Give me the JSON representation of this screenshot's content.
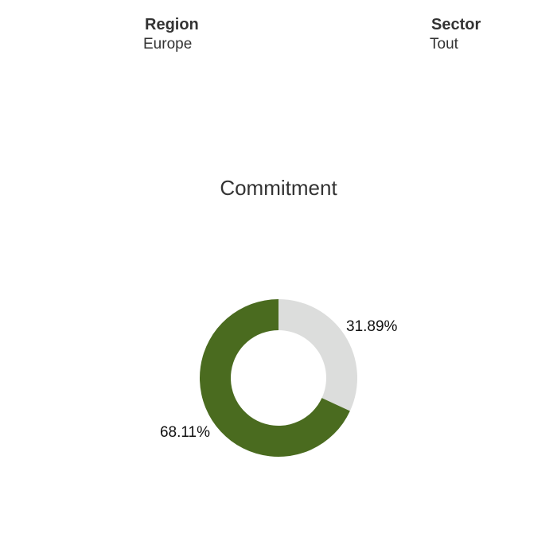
{
  "filters": {
    "region": {
      "label": "Region",
      "value": "Europe"
    },
    "sector": {
      "label": "Sector",
      "value": "Tout"
    }
  },
  "chart_data": {
    "type": "pie",
    "title": "Commitment",
    "donut": true,
    "slices": [
      {
        "value": 31.89,
        "label": "31.89%",
        "color": "#dcdddc"
      },
      {
        "value": 68.11,
        "label": "68.11%",
        "color": "#4a6b1f"
      }
    ]
  }
}
